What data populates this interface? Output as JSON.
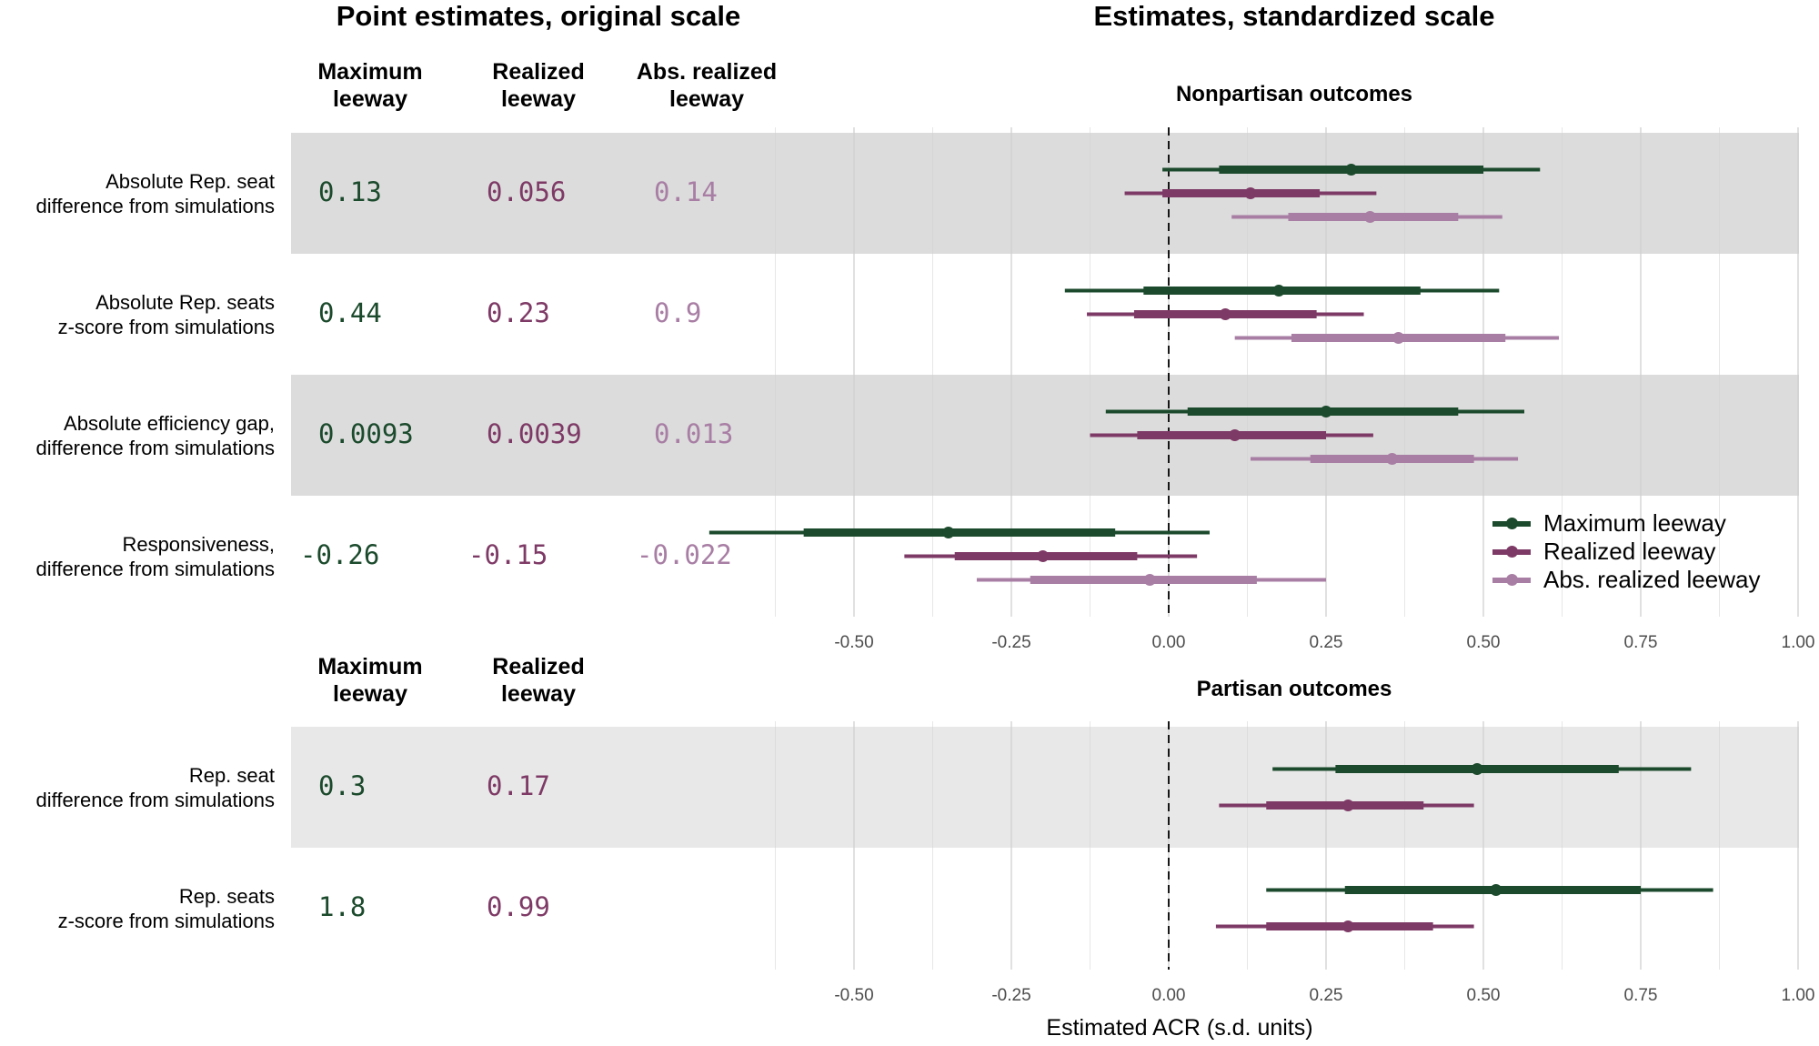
{
  "titles": {
    "left": "Point estimates, original scale",
    "right": "Estimates, standardized scale"
  },
  "colors": {
    "maximum": "#1b4a2c",
    "realized": "#7e3a66",
    "abs_realized": "#a87ea4",
    "band_nonpartisan": "#dcdcdc",
    "band_partisan": "#e8e8e8",
    "gridline": "#cfcfcf"
  },
  "nonpartisan": {
    "column_headers": [
      {
        "line1": "Maximum",
        "line2": "leeway"
      },
      {
        "line1": "Realized",
        "line2": "leeway"
      },
      {
        "line1": "Abs. realized",
        "line2": "leeway"
      }
    ],
    "rows": [
      {
        "label1": "Absolute Rep. seat",
        "label2": "difference from simulations",
        "values": [
          "0.13",
          "0.056",
          "0.14"
        ]
      },
      {
        "label1": "Absolute Rep. seats",
        "label2": "z-score from simulations",
        "values": [
          "0.44",
          "0.23",
          "0.9"
        ]
      },
      {
        "label1": "Absolute efficiency gap,",
        "label2": "difference from simulations",
        "values": [
          "0.0093",
          "0.0039",
          "0.013"
        ]
      },
      {
        "label1": "Responsiveness,",
        "label2": "difference from simulations",
        "values": [
          "-0.26",
          "-0.15",
          "-0.022"
        ]
      }
    ]
  },
  "partisan": {
    "column_headers": [
      {
        "line1": "Maximum",
        "line2": "leeway"
      },
      {
        "line1": "Realized",
        "line2": "leeway"
      }
    ],
    "rows": [
      {
        "label1": "Rep. seat",
        "label2": "difference from simulations",
        "values": [
          "0.3",
          "0.17"
        ]
      },
      {
        "label1": "Rep. seats",
        "label2": "z-score from simulations",
        "values": [
          "1.8",
          "0.99"
        ]
      }
    ]
  },
  "legend": {
    "items": [
      "Maximum leeway",
      "Realized leeway",
      "Abs. realized leeway"
    ],
    "placement": "right, between panels"
  },
  "chart_data": [
    {
      "type": "interval",
      "title": "Nonpartisan outcomes",
      "xlabel": "",
      "xlim": [
        -0.55,
        1.0
      ],
      "xticks": [
        "-0.50",
        "-0.25",
        "0.00",
        "0.25",
        "0.50",
        "0.75",
        "1.00"
      ],
      "xtick_values": [
        -0.5,
        -0.25,
        0,
        0.25,
        0.5,
        0.75,
        1.0
      ],
      "reference_line": 0,
      "grid": true,
      "categories": [
        "Absolute Rep. seat difference from simulations",
        "Absolute Rep. seats z-score from simulations",
        "Absolute efficiency gap, difference from simulations",
        "Responsiveness, difference from simulations"
      ],
      "series": [
        {
          "name": "Maximum leeway",
          "color_key": "maximum",
          "points": [
            {
              "est": 0.29,
              "inner": [
                0.08,
                0.5
              ],
              "outer": [
                -0.01,
                0.59
              ]
            },
            {
              "est": 0.175,
              "inner": [
                -0.04,
                0.4
              ],
              "outer": [
                -0.165,
                0.525
              ]
            },
            {
              "est": 0.25,
              "inner": [
                0.03,
                0.46
              ],
              "outer": [
                -0.1,
                0.565
              ]
            },
            {
              "est": -0.35,
              "inner": [
                -0.58,
                -0.085
              ],
              "outer": [
                -0.73,
                0.065
              ]
            }
          ]
        },
        {
          "name": "Realized leeway",
          "color_key": "realized",
          "points": [
            {
              "est": 0.13,
              "inner": [
                -0.01,
                0.24
              ],
              "outer": [
                -0.07,
                0.33
              ]
            },
            {
              "est": 0.09,
              "inner": [
                -0.055,
                0.235
              ],
              "outer": [
                -0.13,
                0.31
              ]
            },
            {
              "est": 0.105,
              "inner": [
                -0.05,
                0.25
              ],
              "outer": [
                -0.125,
                0.325
              ]
            },
            {
              "est": -0.2,
              "inner": [
                -0.34,
                -0.05
              ],
              "outer": [
                -0.42,
                0.045
              ]
            }
          ]
        },
        {
          "name": "Abs. realized leeway",
          "color_key": "abs_realized",
          "points": [
            {
              "est": 0.32,
              "inner": [
                0.19,
                0.46
              ],
              "outer": [
                0.1,
                0.53
              ]
            },
            {
              "est": 0.365,
              "inner": [
                0.195,
                0.535
              ],
              "outer": [
                0.105,
                0.62
              ]
            },
            {
              "est": 0.355,
              "inner": [
                0.225,
                0.485
              ],
              "outer": [
                0.13,
                0.555
              ]
            },
            {
              "est": -0.03,
              "inner": [
                -0.22,
                0.14
              ],
              "outer": [
                -0.305,
                0.25
              ]
            }
          ]
        }
      ]
    },
    {
      "type": "interval",
      "title": "Partisan outcomes",
      "xlabel": "Estimated ACR (s.d. units)",
      "xlim": [
        -0.55,
        1.0
      ],
      "xticks": [
        "-0.50",
        "-0.25",
        "0.00",
        "0.25",
        "0.50",
        "0.75",
        "1.00"
      ],
      "xtick_values": [
        -0.5,
        -0.25,
        0,
        0.25,
        0.5,
        0.75,
        1.0
      ],
      "reference_line": 0,
      "grid": true,
      "categories": [
        "Rep. seat difference from simulations",
        "Rep. seats z-score from simulations"
      ],
      "series": [
        {
          "name": "Maximum leeway",
          "color_key": "maximum",
          "points": [
            {
              "est": 0.49,
              "inner": [
                0.265,
                0.715
              ],
              "outer": [
                0.165,
                0.83
              ]
            },
            {
              "est": 0.52,
              "inner": [
                0.28,
                0.75
              ],
              "outer": [
                0.155,
                0.865
              ]
            }
          ]
        },
        {
          "name": "Realized leeway",
          "color_key": "realized",
          "points": [
            {
              "est": 0.285,
              "inner": [
                0.155,
                0.405
              ],
              "outer": [
                0.08,
                0.485
              ]
            },
            {
              "est": 0.285,
              "inner": [
                0.155,
                0.42
              ],
              "outer": [
                0.075,
                0.485
              ]
            }
          ]
        }
      ]
    }
  ]
}
